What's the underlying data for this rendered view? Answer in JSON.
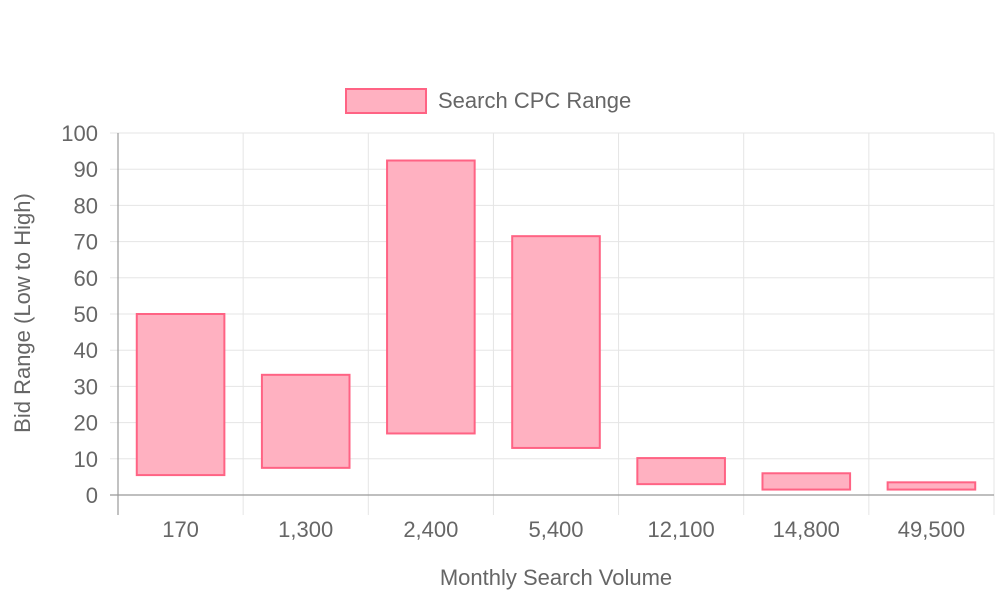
{
  "chart_data": {
    "type": "bar",
    "subtype": "floating-range",
    "categories": [
      "170",
      "1,300",
      "2,400",
      "5,400",
      "12,100",
      "14,800",
      "49,500"
    ],
    "series": [
      {
        "name": "Search CPC Range",
        "ranges": [
          [
            5.5,
            50
          ],
          [
            7.5,
            33.2
          ],
          [
            17,
            92.4
          ],
          [
            13,
            71.5
          ],
          [
            3,
            10.2
          ],
          [
            1.5,
            6
          ],
          [
            1.5,
            3.5
          ]
        ]
      }
    ],
    "xlabel": "Monthly Search Volume",
    "ylabel": "Bid Range (Low to High)",
    "ylim": [
      0,
      100
    ],
    "yticks": [
      0,
      10,
      20,
      30,
      40,
      50,
      60,
      70,
      80,
      90,
      100
    ],
    "grid": true,
    "legend_position": "top",
    "colors": {
      "bar_fill": "#ffb1c1",
      "bar_stroke": "#ff6384",
      "grid": "#e5e5e5",
      "axis": "#999999",
      "text": "#666666"
    }
  }
}
